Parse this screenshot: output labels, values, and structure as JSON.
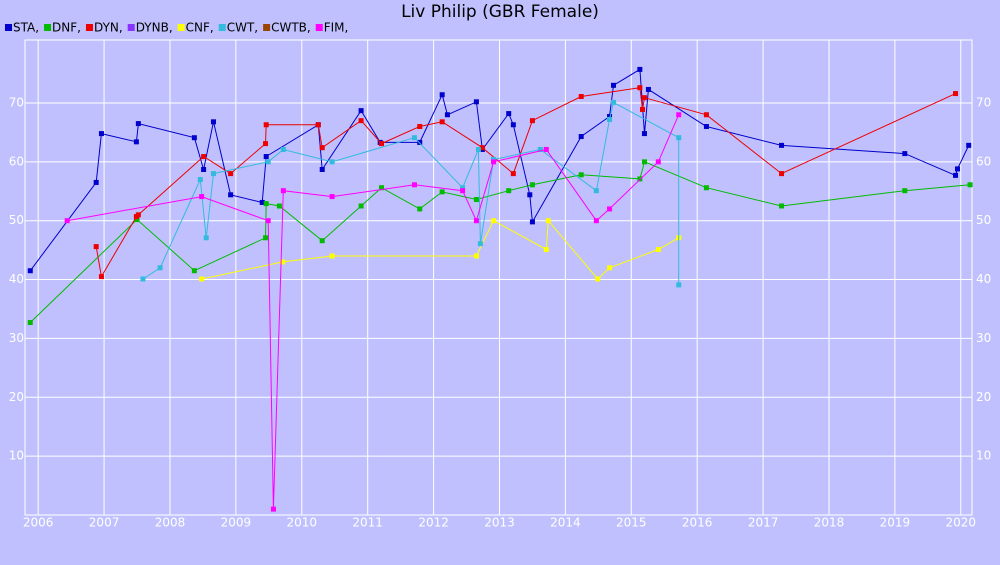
{
  "chart_data": {
    "type": "line",
    "title": "Liv Philip (GBR Female)",
    "xlim": [
      2005.8,
      2020.17
    ],
    "ylim": [
      0,
      80.7
    ],
    "xticks": [
      2006,
      2007,
      2008,
      2009,
      2010,
      2011,
      2012,
      2013,
      2014,
      2015,
      2016,
      2017,
      2018,
      2019,
      2020
    ],
    "yticks": [
      10,
      20,
      30,
      40,
      50,
      60,
      70
    ],
    "grid": true,
    "series": [
      {
        "name": "STA,",
        "color": "#0000cc",
        "x": [
          2005.88,
          2006.88,
          2006.96,
          2007.49,
          2007.52,
          2008.37,
          2008.51,
          2008.66,
          2008.92,
          2009.4,
          2009.46,
          2010.25,
          2010.31,
          2010.9,
          2011.19,
          2011.79,
          2012.13,
          2012.21,
          2012.65,
          2012.74,
          2013.14,
          2013.21,
          2013.46,
          2013.5,
          2014.24,
          2014.67,
          2014.73,
          2015.13,
          2015.2,
          2015.26,
          2016.14,
          2017.28,
          2019.15,
          2019.92,
          2019.95,
          2020.12
        ],
        "values": [
          41.5,
          56.5,
          64.8,
          63.4,
          66.5,
          64.1,
          58.7,
          66.8,
          54.4,
          53.1,
          60.9,
          66.3,
          58.7,
          68.7,
          63.3,
          63.3,
          71.4,
          68.0,
          70.2,
          62.1,
          68.2,
          66.3,
          54.4,
          49.8,
          64.3,
          67.7,
          73.0,
          75.7,
          64.8,
          72.3,
          66.0,
          62.8,
          61.4,
          57.7,
          58.8,
          62.8
        ]
      },
      {
        "name": "DNF,",
        "color": "#00bb00",
        "x": [
          2005.88,
          2007.5,
          2008.37,
          2009.45,
          2009.46,
          2009.66,
          2010.31,
          2010.9,
          2011.21,
          2011.79,
          2012.13,
          2012.65,
          2013.14,
          2013.5,
          2014.24,
          2015.13,
          2015.2,
          2016.14,
          2017.28,
          2019.15,
          2020.14
        ],
        "values": [
          32.7,
          50.2,
          41.5,
          47.1,
          52.9,
          52.5,
          46.6,
          52.5,
          55.6,
          52.0,
          54.9,
          53.6,
          55.1,
          56.1,
          57.8,
          57.1,
          60.0,
          55.6,
          52.5,
          55.1,
          56.1
        ]
      },
      {
        "name": "DYN,",
        "color": "#ee0000",
        "x": [
          2006.88,
          2006.96,
          2007.49,
          2007.52,
          2008.51,
          2008.92,
          2009.45,
          2009.46,
          2010.25,
          2010.31,
          2010.9,
          2011.21,
          2011.79,
          2012.13,
          2012.74,
          2013.21,
          2013.5,
          2014.24,
          2015.13,
          2015.17,
          2015.2,
          2016.14,
          2017.28,
          2019.92
        ],
        "values": [
          45.6,
          40.5,
          50.7,
          51.0,
          60.9,
          58.0,
          63.1,
          66.3,
          66.3,
          62.4,
          67.0,
          63.1,
          66.0,
          66.8,
          62.4,
          58.0,
          67.0,
          71.1,
          72.6,
          68.9,
          70.9,
          68.0,
          58.0,
          71.6
        ]
      },
      {
        "name": "DYNB,",
        "color": "#8833ff",
        "x": [],
        "values": []
      },
      {
        "name": "CNF,",
        "color": "#ffff00",
        "x": [
          2008.48,
          2009.71,
          2010.46,
          2012.65,
          2012.91,
          2013.71,
          2013.74,
          2014.49,
          2014.67,
          2015.41,
          2015.72
        ],
        "values": [
          40.1,
          43.0,
          44.0,
          44.0,
          50.0,
          45.1,
          50.0,
          40.1,
          42.0,
          45.1,
          47.1
        ]
      },
      {
        "name": "CWT,",
        "color": "#33bbdd",
        "x": [
          2007.59,
          2007.85,
          2008.46,
          2008.55,
          2008.66,
          2009.49,
          2009.72,
          2010.46,
          2011.71,
          2012.44,
          2012.68,
          2012.71,
          2012.91,
          2013.62,
          2014.47,
          2014.67,
          2014.73,
          2015.72,
          2015.72
        ],
        "values": [
          40.1,
          42.0,
          57.0,
          47.1,
          58.0,
          60.0,
          62.1,
          60.0,
          64.1,
          55.6,
          62.1,
          46.1,
          60.4,
          62.1,
          55.1,
          67.2,
          70.1,
          64.1,
          39.1
        ]
      },
      {
        "name": "CWTB,",
        "color": "#994400",
        "x": [],
        "values": []
      },
      {
        "name": "FIM,",
        "color": "#ff00ff",
        "x": [
          2006.44,
          2008.48,
          2009.49,
          2009.57,
          2009.72,
          2010.46,
          2011.71,
          2012.44,
          2012.65,
          2012.91,
          2013.71,
          2014.47,
          2014.67,
          2015.41,
          2015.72
        ],
        "values": [
          50.0,
          54.1,
          50.0,
          1.0,
          55.1,
          54.1,
          56.1,
          55.1,
          50.0,
          60.0,
          62.1,
          50.0,
          52.0,
          60.0,
          68.0
        ]
      }
    ]
  }
}
